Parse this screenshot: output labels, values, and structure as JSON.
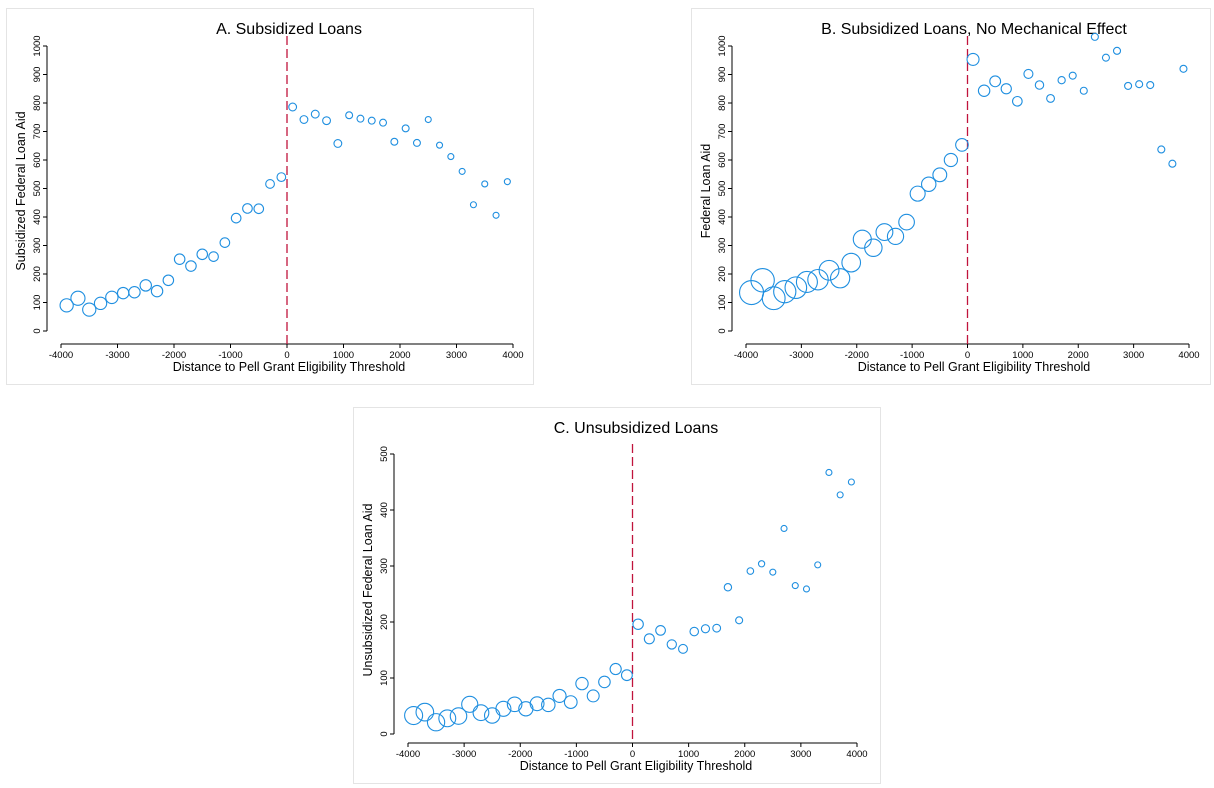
{
  "chart_data": [
    {
      "type": "scatter",
      "title": "A. Subsidized Loans",
      "xlabel": "Distance to Pell Grant Eligibility Threshold",
      "ylabel": "Subsidized Federal Loan Aid",
      "xlim": [
        -4000,
        4000
      ],
      "ylim": [
        0,
        1000
      ],
      "xticks": [
        -4000,
        -3000,
        -2000,
        -1000,
        0,
        1000,
        2000,
        3000,
        4000
      ],
      "yticks": [
        0,
        100,
        200,
        300,
        400,
        500,
        600,
        700,
        800,
        900,
        1000
      ],
      "threshold_x": 0,
      "x": [
        -3900,
        -3700,
        -3500,
        -3300,
        -3100,
        -2900,
        -2700,
        -2500,
        -2300,
        -2100,
        -1900,
        -1700,
        -1500,
        -1300,
        -1100,
        -900,
        -700,
        -500,
        -300,
        -100,
        100,
        300,
        500,
        700,
        900,
        1100,
        1300,
        1500,
        1700,
        1900,
        2100,
        2300,
        2500,
        2700,
        2900,
        3100,
        3300,
        3500,
        3700,
        3900
      ],
      "y": [
        90,
        115,
        75,
        97,
        118,
        133,
        136,
        160,
        140,
        178,
        252,
        228,
        269,
        261,
        310,
        396,
        430,
        429,
        516,
        540,
        786,
        742,
        761,
        738,
        658,
        757,
        745,
        738,
        731,
        664,
        711,
        660,
        742,
        652,
        612,
        560,
        443,
        516,
        406,
        524
      ],
      "weights": [
        13,
        14,
        13,
        12,
        12,
        11,
        11,
        11,
        11,
        10,
        10,
        10,
        10,
        9,
        9,
        9,
        9,
        9,
        8,
        8,
        7,
        7,
        7,
        7,
        7,
        6,
        6,
        6,
        6,
        6,
        6,
        6,
        5,
        5,
        5,
        5,
        5,
        5,
        5,
        5
      ]
    },
    {
      "type": "scatter",
      "title": "B. Subsidized Loans, No Mechanical Effect",
      "xlabel": "Distance to Pell Grant Eligibility Threshold",
      "ylabel": "Federal Loan Aid",
      "xlim": [
        -4000,
        4000
      ],
      "ylim": [
        0,
        1000
      ],
      "xticks": [
        -4000,
        -3000,
        -2000,
        -1000,
        0,
        1000,
        2000,
        3000,
        4000
      ],
      "yticks": [
        0,
        100,
        200,
        300,
        400,
        500,
        600,
        700,
        800,
        900,
        1000
      ],
      "threshold_x": 0,
      "x": [
        -3900,
        -3700,
        -3500,
        -3300,
        -3100,
        -2900,
        -2700,
        -2500,
        -2300,
        -2100,
        -1900,
        -1700,
        -1500,
        -1300,
        -1100,
        -900,
        -700,
        -500,
        -300,
        -100,
        100,
        300,
        500,
        700,
        900,
        1100,
        1300,
        1500,
        1700,
        1900,
        2100,
        2300,
        2500,
        2700,
        2900,
        3100,
        3300,
        3500,
        3700,
        3900
      ],
      "y": [
        135,
        178,
        115,
        138,
        152,
        172,
        180,
        213,
        185,
        240,
        322,
        292,
        347,
        332,
        382,
        482,
        515,
        548,
        600,
        653,
        953,
        843,
        876,
        850,
        806,
        902,
        863,
        816,
        880,
        896,
        843,
        1032,
        959,
        983,
        860,
        866,
        863,
        637,
        587,
        920
      ]
    },
    {
      "type": "scatter",
      "title": "C. Unsubsidized Loans",
      "xlabel": "Distance to Pell Grant Eligibility Threshold",
      "ylabel": "Unsubsidized Federal Loan Aid",
      "xlim": [
        -4000,
        4000
      ],
      "ylim": [
        0,
        500
      ],
      "xticks": [
        -4000,
        -3000,
        -2000,
        -1000,
        0,
        1000,
        2000,
        3000,
        4000
      ],
      "yticks": [
        0,
        100,
        200,
        300,
        400,
        500
      ],
      "threshold_x": 0,
      "x": [
        -3900,
        -3700,
        -3500,
        -3300,
        -3100,
        -2900,
        -2700,
        -2500,
        -2300,
        -2100,
        -1900,
        -1700,
        -1500,
        -1300,
        -1100,
        -900,
        -700,
        -500,
        -300,
        -100,
        100,
        300,
        500,
        700,
        900,
        1100,
        1300,
        1500,
        1700,
        1900,
        2100,
        2300,
        2500,
        2700,
        2900,
        3100,
        3300,
        3500,
        3700,
        3900
      ],
      "y": [
        33,
        39,
        21,
        28,
        32,
        53,
        38,
        33,
        45,
        53,
        45,
        54,
        52,
        68,
        57,
        90,
        68,
        93,
        116,
        105,
        196,
        170,
        185,
        160,
        152,
        183,
        188,
        189,
        262,
        203,
        291,
        304,
        289,
        367,
        265,
        259,
        302,
        467,
        427,
        450
      ]
    }
  ]
}
